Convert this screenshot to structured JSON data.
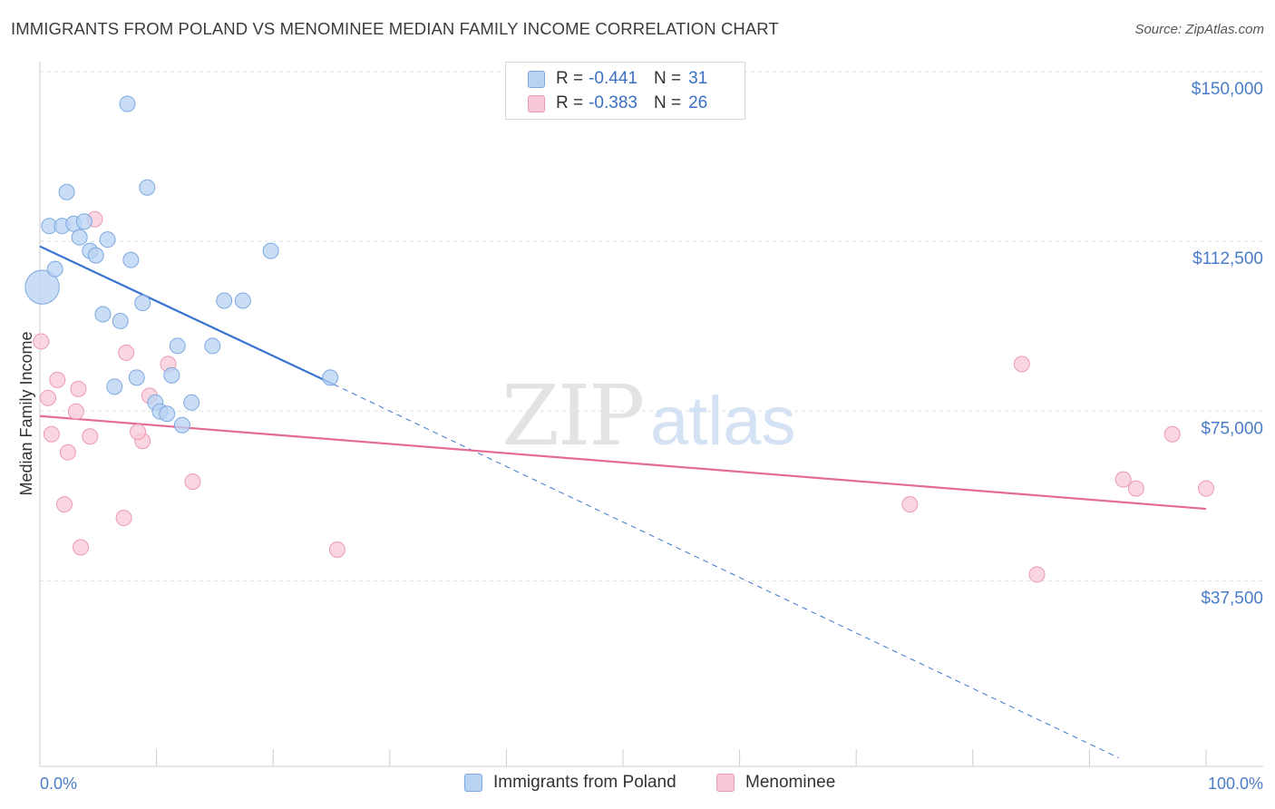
{
  "title": "IMMIGRANTS FROM POLAND VS MENOMINEE MEDIAN FAMILY INCOME CORRELATION CHART",
  "source": "Source: ZipAtlas.com",
  "watermark": {
    "zip": "ZIP",
    "atlas": "atlas"
  },
  "legend": {
    "rows": [
      {
        "r_label": "R = ",
        "r_value": "-0.441",
        "n_label": "N = ",
        "n_value": "31"
      },
      {
        "r_label": "R = ",
        "r_value": "-0.383",
        "n_label": "N = ",
        "n_value": "26"
      }
    ]
  },
  "bottom_legend": [
    "Immigrants from Poland",
    "Menominee"
  ],
  "colors": {
    "poland_fill": "#b8d2f3",
    "poland_stroke": "#7ea9e0",
    "poland_line": "#3a74d0",
    "menominee_fill": "#f8c8d6",
    "menominee_stroke": "#ec9ab4",
    "menominee_line": "#e46b94",
    "tick_label": "#4a7cc9",
    "grid": "#dddddd"
  },
  "chart_data": {
    "type": "scatter",
    "title": "IMMIGRANTS FROM POLAND VS MENOMINEE MEDIAN FAMILY INCOME CORRELATION CHART",
    "xlabel": "",
    "ylabel": "Median Family Income",
    "xlim": [
      0,
      100
    ],
    "ylim": [
      0,
      155000
    ],
    "x_tick_labels": [
      "0.0%",
      "100.0%"
    ],
    "y_ticks": [
      37500,
      75000,
      112500,
      150000
    ],
    "y_tick_labels": [
      "$37,500",
      "$75,000",
      "$112,500",
      "$150,000"
    ],
    "grid": true,
    "legend_position": "top-center",
    "series": [
      {
        "name": "Immigrants from Poland",
        "r": -0.441,
        "n": 31,
        "points": [
          [
            0.2,
            106000,
            2.2
          ],
          [
            7.5,
            146500,
            1
          ],
          [
            2.3,
            127000,
            1
          ],
          [
            9.2,
            128000,
            1
          ],
          [
            0.8,
            119500,
            1
          ],
          [
            1.9,
            119500,
            1
          ],
          [
            2.9,
            120000,
            1
          ],
          [
            3.8,
            120500,
            1
          ],
          [
            3.4,
            117000,
            1
          ],
          [
            5.8,
            116500,
            1
          ],
          [
            4.3,
            114000,
            1
          ],
          [
            4.8,
            113000,
            1
          ],
          [
            19.8,
            114000,
            1
          ],
          [
            7.8,
            112000,
            1
          ],
          [
            1.3,
            110000,
            1
          ],
          [
            15.8,
            103000,
            1
          ],
          [
            17.4,
            103000,
            1
          ],
          [
            8.8,
            102500,
            1
          ],
          [
            5.4,
            100000,
            1
          ],
          [
            6.9,
            98500,
            1
          ],
          [
            11.8,
            93000,
            1
          ],
          [
            14.8,
            93000,
            1
          ],
          [
            8.3,
            86000,
            1
          ],
          [
            11.3,
            86500,
            1
          ],
          [
            6.4,
            84000,
            1
          ],
          [
            24.9,
            86000,
            1
          ],
          [
            9.9,
            80500,
            1
          ],
          [
            10.3,
            78500,
            1
          ],
          [
            13.0,
            80500,
            1
          ],
          [
            12.2,
            75500,
            1
          ],
          [
            10.9,
            78000,
            1
          ]
        ],
        "trend": {
          "x": [
            0,
            25.2
          ],
          "y": [
            115000,
            84500
          ]
        },
        "trend_extension": {
          "x": [
            25.2,
            92.5
          ],
          "y": [
            84500,
            2000
          ]
        }
      },
      {
        "name": "Menominee",
        "r": -0.383,
        "n": 26,
        "points": [
          [
            0.1,
            94000,
            1
          ],
          [
            1.5,
            85500,
            1
          ],
          [
            0.7,
            81500,
            1
          ],
          [
            3.3,
            83500,
            1
          ],
          [
            7.4,
            91500,
            1
          ],
          [
            11.0,
            89000,
            1
          ],
          [
            3.1,
            78500,
            1
          ],
          [
            9.4,
            82000,
            1
          ],
          [
            1.0,
            73500,
            1
          ],
          [
            4.3,
            73000,
            1
          ],
          [
            8.8,
            72000,
            1
          ],
          [
            8.4,
            74000,
            1
          ],
          [
            2.4,
            69500,
            1
          ],
          [
            4.7,
            121000,
            1
          ],
          [
            13.1,
            63000,
            1
          ],
          [
            2.1,
            58000,
            1
          ],
          [
            7.2,
            55000,
            1
          ],
          [
            3.5,
            48500,
            1
          ],
          [
            25.5,
            48000,
            1
          ],
          [
            84.2,
            89000,
            1
          ],
          [
            97.1,
            73500,
            1
          ],
          [
            74.6,
            58000,
            1
          ],
          [
            92.9,
            63500,
            1
          ],
          [
            94.0,
            61500,
            1
          ],
          [
            100.0,
            61500,
            1
          ],
          [
            85.5,
            42500,
            1
          ]
        ],
        "trend": {
          "x": [
            0,
            100
          ],
          "y": [
            77500,
            57000
          ]
        }
      }
    ]
  }
}
